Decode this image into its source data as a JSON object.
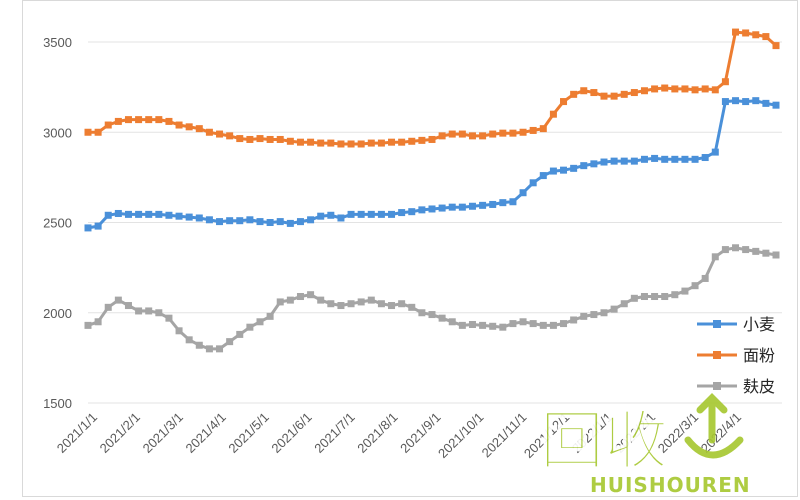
{
  "chart_data": {
    "type": "line",
    "title": "",
    "xlabel": "",
    "ylabel": "",
    "ylim": [
      1500,
      3600
    ],
    "yticks": [
      1500,
      2000,
      2500,
      3000,
      3500
    ],
    "xticks": [
      "2021/1/1",
      "2021/2/1",
      "2021/3/1",
      "2021/4/1",
      "2021/5/1",
      "2021/6/1",
      "2021/7/1",
      "2021/8/1",
      "2021/9/1",
      "2021/10/1",
      "2021/11/1",
      "2021/12/1",
      "2022/1/1",
      "2022/2/1",
      "2022/3/1",
      "2022/4/1"
    ],
    "grid": true,
    "legend_position": "bottom-right",
    "series": [
      {
        "name": "小麦",
        "color": "#4a90d9",
        "values": [
          2470,
          2480,
          2540,
          2550,
          2545,
          2545,
          2545,
          2545,
          2540,
          2535,
          2530,
          2525,
          2515,
          2505,
          2510,
          2510,
          2515,
          2505,
          2500,
          2505,
          2495,
          2505,
          2515,
          2535,
          2540,
          2525,
          2545,
          2545,
          2545,
          2545,
          2545,
          2555,
          2560,
          2570,
          2575,
          2580,
          2585,
          2585,
          2590,
          2595,
          2600,
          2610,
          2615,
          2665,
          2720,
          2760,
          2785,
          2790,
          2800,
          2815,
          2825,
          2835,
          2840,
          2840,
          2840,
          2850,
          2855,
          2850,
          2850,
          2850,
          2850,
          2860,
          2890,
          3170,
          3175,
          3170,
          3175,
          3160,
          3150
        ]
      },
      {
        "name": "面粉",
        "color": "#ed7d31",
        "values": [
          3000,
          3000,
          3040,
          3060,
          3070,
          3070,
          3070,
          3070,
          3060,
          3040,
          3030,
          3020,
          3000,
          2990,
          2980,
          2965,
          2960,
          2965,
          2960,
          2960,
          2950,
          2945,
          2945,
          2940,
          2940,
          2935,
          2935,
          2935,
          2940,
          2940,
          2945,
          2945,
          2950,
          2955,
          2960,
          2980,
          2990,
          2990,
          2980,
          2980,
          2990,
          2995,
          2995,
          3000,
          3010,
          3020,
          3100,
          3170,
          3210,
          3230,
          3220,
          3200,
          3200,
          3210,
          3220,
          3230,
          3240,
          3245,
          3240,
          3240,
          3235,
          3240,
          3235,
          3280,
          3555,
          3550,
          3540,
          3530,
          3480
        ]
      },
      {
        "name": "麸皮",
        "color": "#a5a5a5",
        "values": [
          1930,
          1950,
          2030,
          2070,
          2040,
          2010,
          2010,
          2000,
          1970,
          1900,
          1850,
          1820,
          1800,
          1800,
          1840,
          1880,
          1920,
          1950,
          1980,
          2060,
          2070,
          2090,
          2100,
          2070,
          2050,
          2040,
          2050,
          2060,
          2070,
          2050,
          2040,
          2050,
          2030,
          2000,
          1990,
          1970,
          1950,
          1930,
          1935,
          1930,
          1925,
          1920,
          1940,
          1950,
          1940,
          1930,
          1930,
          1940,
          1960,
          1980,
          1990,
          2000,
          2020,
          2050,
          2080,
          2090,
          2090,
          2090,
          2100,
          2120,
          2150,
          2190,
          2310,
          2350,
          2360,
          2350,
          2340,
          2330,
          2320
        ]
      }
    ]
  },
  "watermark": {
    "cn_text": "回收",
    "en_text": "HUISHOUREN",
    "color": "#a8c832"
  }
}
